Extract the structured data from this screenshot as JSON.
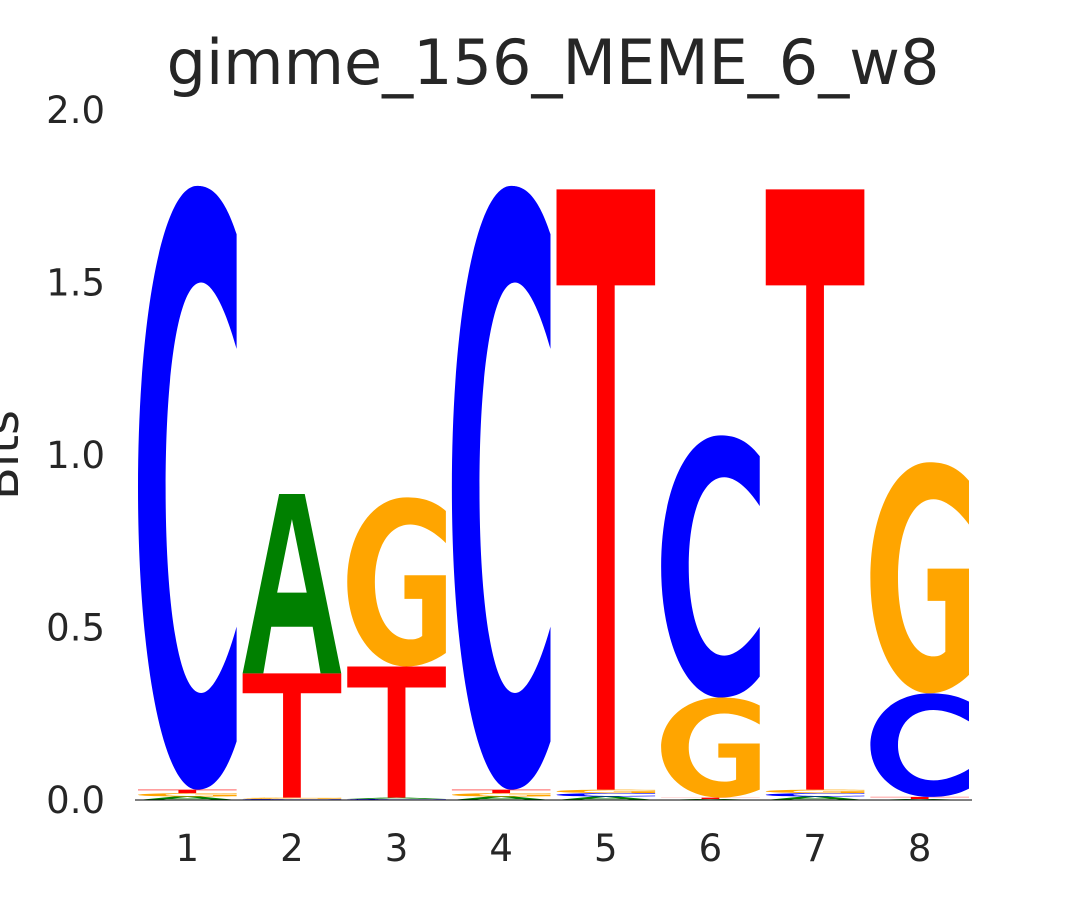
{
  "chart_data": {
    "type": "sequence-logo",
    "title": "gimme_156_MEME_6_w8",
    "ylabel": "Bits",
    "ylim": [
      0,
      2.0
    ],
    "y_ticks": [
      "0.0",
      "0.5",
      "1.0",
      "1.5",
      "2.0"
    ],
    "positions": [
      "1",
      "2",
      "3",
      "4",
      "5",
      "6",
      "7",
      "8"
    ],
    "colors": {
      "A": "#008000",
      "C": "#0000ff",
      "G": "#ffa500",
      "T": "#ff0000"
    },
    "letters": [
      [
        {
          "base": "A",
          "bits": 0.01
        },
        {
          "base": "G",
          "bits": 0.01
        },
        {
          "base": "T",
          "bits": 0.01
        },
        {
          "base": "C",
          "bits": 1.75
        }
      ],
      [
        {
          "base": "C",
          "bits": 0.003
        },
        {
          "base": "G",
          "bits": 0.004
        },
        {
          "base": "T",
          "bits": 0.36
        },
        {
          "base": "A",
          "bits": 0.52
        }
      ],
      [
        {
          "base": "C",
          "bits": 0.003
        },
        {
          "base": "A",
          "bits": 0.004
        },
        {
          "base": "T",
          "bits": 0.38
        },
        {
          "base": "G",
          "bits": 0.49
        }
      ],
      [
        {
          "base": "A",
          "bits": 0.01
        },
        {
          "base": "G",
          "bits": 0.01
        },
        {
          "base": "T",
          "bits": 0.01
        },
        {
          "base": "C",
          "bits": 1.75
        }
      ],
      [
        {
          "base": "A",
          "bits": 0.01
        },
        {
          "base": "C",
          "bits": 0.01
        },
        {
          "base": "G",
          "bits": 0.01
        },
        {
          "base": "T",
          "bits": 1.74
        }
      ],
      [
        {
          "base": "A",
          "bits": 0.003
        },
        {
          "base": "T",
          "bits": 0.004
        },
        {
          "base": "G",
          "bits": 0.29
        },
        {
          "base": "C",
          "bits": 0.76
        }
      ],
      [
        {
          "base": "A",
          "bits": 0.01
        },
        {
          "base": "C",
          "bits": 0.01
        },
        {
          "base": "G",
          "bits": 0.01
        },
        {
          "base": "T",
          "bits": 1.74
        }
      ],
      [
        {
          "base": "A",
          "bits": 0.003
        },
        {
          "base": "T",
          "bits": 0.006
        },
        {
          "base": "C",
          "bits": 0.3
        },
        {
          "base": "G",
          "bits": 0.67
        }
      ]
    ]
  }
}
